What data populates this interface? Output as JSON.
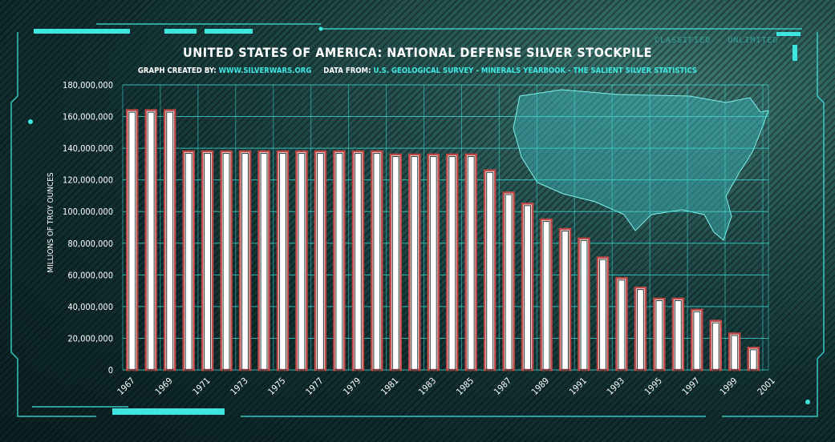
{
  "header": {
    "title": "UNITED STATES OF AMERICA: NATIONAL DEFENSE SILVER STOCKPILE",
    "created_by_label": "GRAPH CREATED BY:",
    "created_by_value": "WWW.SILVERWARS.ORG",
    "source_label": "DATA FROM:",
    "source_value": "U.S. GEOLOGICAL SURVEY - MINERALS YEARBOOK - THE SALIENT SILVER STATISTICS",
    "stamp": "CLASSIFIED - UNLIMITED"
  },
  "colors": {
    "accent": "#3ee6e0",
    "bar_fill": "#ffffff",
    "bar_outline": "#c04a48",
    "grid": "#3fd8d0"
  },
  "chart_data": {
    "type": "bar",
    "title": "UNITED STATES OF AMERICA: NATIONAL DEFENSE SILVER STOCKPILE",
    "xlabel": "",
    "ylabel": "MILLIONS OF TROY OUNCES",
    "ylim": [
      0,
      180000000
    ],
    "yticks": [
      "0",
      "20,000,000",
      "40,000,000",
      "60,000,000",
      "80,000,000",
      "100,000,000",
      "120,000,000",
      "140,000,000",
      "160,000,000",
      "180,000,000"
    ],
    "x_tick_labels": [
      "1967",
      "1969",
      "1971",
      "1973",
      "1975",
      "1977",
      "1979",
      "1981",
      "1983",
      "1985",
      "1987",
      "1989",
      "1991",
      "1993",
      "1995",
      "1997",
      "1999",
      "2001"
    ],
    "categories": [
      "1967",
      "1968",
      "1969",
      "1970",
      "1971",
      "1972",
      "1973",
      "1974",
      "1975",
      "1976",
      "1977",
      "1978",
      "1979",
      "1980",
      "1981",
      "1982",
      "1983",
      "1984",
      "1985",
      "1986",
      "1987",
      "1988",
      "1989",
      "1990",
      "1991",
      "1992",
      "1993",
      "1994",
      "1995",
      "1996",
      "1997",
      "1998",
      "1999",
      "2000",
      "2001"
    ],
    "values": [
      164000000,
      164000000,
      164000000,
      138000000,
      138000000,
      138000000,
      138000000,
      138000000,
      138000000,
      138000000,
      138000000,
      138000000,
      138000000,
      138000000,
      136000000,
      136000000,
      136000000,
      136000000,
      136000000,
      126000000,
      112000000,
      105000000,
      95000000,
      89000000,
      83000000,
      71000000,
      58000000,
      52000000,
      45000000,
      45000000,
      38000000,
      31000000,
      23000000,
      14000000,
      0
    ],
    "grid": true
  }
}
